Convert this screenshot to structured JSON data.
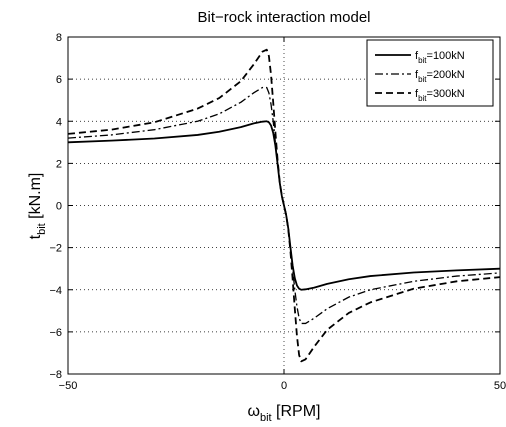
{
  "chart_data": {
    "type": "line",
    "title": "Bit−rock interaction model",
    "xlabel": {
      "main": "ω",
      "sub": "bit",
      "rest": " [RPM]"
    },
    "ylabel": {
      "main": "t",
      "sub": "bit",
      "rest": " [kN.m]"
    },
    "xlim": [
      -50,
      50
    ],
    "ylim": [
      -8,
      8
    ],
    "xticks": [
      -50,
      0,
      50
    ],
    "yticks": [
      -8,
      -6,
      -4,
      -2,
      0,
      2,
      4,
      6,
      8
    ],
    "xtick_labels": [
      "−50",
      "0",
      "50"
    ],
    "ytick_labels": [
      "−8",
      "−6",
      "−4",
      "−2",
      "0",
      "2",
      "4",
      "6",
      "8"
    ],
    "grid": true,
    "grid_style": "dotted",
    "legend_position": "top-right",
    "series": [
      {
        "name": {
          "main": "f",
          "sub": "bit",
          "rest": "=100kN"
        },
        "line_style": "solid",
        "color": "#000000",
        "x": [
          -50,
          -40,
          -30,
          -20,
          -15,
          -10,
          -7,
          -5,
          -4,
          -3.5,
          -3,
          -2.5,
          -2,
          -1.5,
          -1,
          -0.5,
          0,
          0.5,
          1,
          1.5,
          2,
          2.5,
          3,
          3.5,
          4,
          5,
          7,
          10,
          15,
          20,
          30,
          40,
          50
        ],
        "y": [
          3.0,
          3.08,
          3.18,
          3.35,
          3.5,
          3.72,
          3.9,
          3.98,
          4.0,
          3.95,
          3.8,
          3.45,
          2.85,
          2.0,
          1.1,
          0.45,
          0.0,
          -0.45,
          -1.1,
          -2.0,
          -2.85,
          -3.45,
          -3.8,
          -3.95,
          -4.0,
          -3.98,
          -3.9,
          -3.72,
          -3.5,
          -3.35,
          -3.18,
          -3.08,
          -3.0
        ]
      },
      {
        "name": {
          "main": "f",
          "sub": "bit",
          "rest": "=200kN"
        },
        "line_style": "dashdot",
        "color": "#000000",
        "x": [
          -50,
          -40,
          -30,
          -20,
          -15,
          -10,
          -7,
          -5,
          -4,
          -3.5,
          -3,
          -2.5,
          -2,
          -1.5,
          -1,
          -0.5,
          0,
          0.5,
          1,
          1.5,
          2,
          2.5,
          3,
          3.5,
          4,
          5,
          7,
          10,
          15,
          20,
          30,
          40,
          50
        ],
        "y": [
          3.2,
          3.35,
          3.6,
          4.0,
          4.35,
          4.9,
          5.35,
          5.6,
          5.6,
          5.35,
          4.8,
          4.0,
          3.0,
          2.0,
          1.1,
          0.45,
          0.0,
          -0.45,
          -1.1,
          -2.0,
          -3.0,
          -4.0,
          -4.8,
          -5.35,
          -5.6,
          -5.6,
          -5.35,
          -4.9,
          -4.35,
          -4.0,
          -3.6,
          -3.35,
          -3.2
        ]
      },
      {
        "name": {
          "main": "f",
          "sub": "bit",
          "rest": "=300kN"
        },
        "line_style": "dashed",
        "color": "#000000",
        "x": [
          -50,
          -40,
          -30,
          -20,
          -15,
          -10,
          -7,
          -5,
          -4,
          -3.5,
          -3,
          -2.5,
          -2,
          -1.5,
          -1,
          -0.5,
          0,
          0.5,
          1,
          1.5,
          2,
          2.5,
          3,
          3.5,
          4,
          5,
          7,
          10,
          15,
          20,
          30,
          40,
          50
        ],
        "y": [
          3.4,
          3.6,
          3.95,
          4.6,
          5.1,
          5.9,
          6.7,
          7.3,
          7.4,
          7.1,
          6.2,
          4.9,
          3.5,
          2.2,
          1.15,
          0.45,
          0.0,
          -0.45,
          -1.15,
          -2.2,
          -3.5,
          -4.9,
          -6.2,
          -7.1,
          -7.4,
          -7.3,
          -6.7,
          -5.9,
          -5.1,
          -4.6,
          -3.95,
          -3.6,
          -3.4
        ]
      }
    ]
  }
}
